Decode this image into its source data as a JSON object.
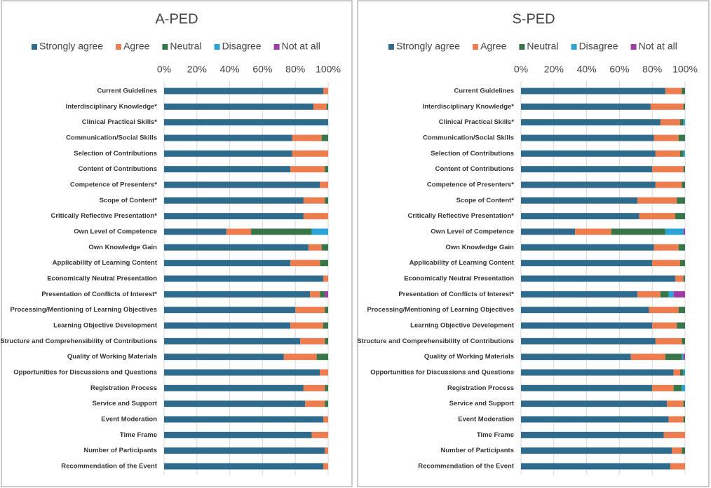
{
  "chart_data": [
    {
      "type": "bar",
      "orientation": "horizontal",
      "stacked": true,
      "title": "A-PED",
      "categories": [
        "Current Guidelines",
        "Interdisciplinary Knowledge*",
        "Clinical Practical Skills*",
        "Communication/Social Skills",
        "Selection of Contributions",
        "Content of Contributions",
        "Competence of Presenters*",
        "Scope of Content*",
        "Critically Reflective Presentation*",
        "Own Level of Competence",
        "Own Knowledge Gain",
        "Applicability of Learning Content",
        "Economically Neutral Presentation",
        "Presentation of Conflicts of Interest*",
        "Processing/Mentioning of Learning Objectives",
        "Learning Objective Development",
        "Structure and Comprehensibility of Contributions",
        "Quality of Working Materials",
        "Opportunities for Discussions and Questions",
        "Registration Process",
        "Service and Support",
        "Event Moderation",
        "Time Frame",
        "Number of Participants",
        "Recommendation of the Event"
      ],
      "series": [
        {
          "name": "Strongly agree",
          "color": "#2f6b8c",
          "values": [
            97,
            91,
            100,
            78,
            78,
            77,
            95,
            85,
            85,
            38,
            88,
            77,
            97,
            89,
            80,
            77,
            83,
            73,
            95,
            85,
            86,
            97,
            90,
            98,
            97
          ]
        },
        {
          "name": "Agree",
          "color": "#ed7d4f",
          "values": [
            3,
            8,
            0,
            18,
            22,
            21,
            5,
            13,
            15,
            15,
            8,
            18,
            3,
            6,
            18,
            20,
            15,
            20,
            5,
            13,
            12,
            3,
            10,
            2,
            3
          ]
        },
        {
          "name": "Neutral",
          "color": "#38764a",
          "values": [
            0,
            1,
            0,
            4,
            0,
            2,
            0,
            2,
            0,
            37,
            4,
            5,
            0,
            3,
            2,
            3,
            2,
            7,
            0,
            2,
            2,
            0,
            0,
            0,
            0
          ]
        },
        {
          "name": "Disagree",
          "color": "#2aa3d5",
          "values": [
            0,
            0,
            0,
            0,
            0,
            0,
            0,
            0,
            0,
            10,
            0,
            0,
            0,
            0,
            0,
            0,
            0,
            0,
            0,
            0,
            0,
            0,
            0,
            0,
            0
          ]
        },
        {
          "name": "Not at all",
          "color": "#a03ca6",
          "values": [
            0,
            0,
            0,
            0,
            0,
            0,
            0,
            0,
            0,
            0,
            0,
            0,
            0,
            2,
            0,
            0,
            0,
            0,
            0,
            0,
            0,
            0,
            0,
            0,
            0
          ]
        }
      ],
      "xlim": [
        0,
        100
      ],
      "xticks": [
        {
          "value": 0,
          "label": "0%"
        },
        {
          "value": 20,
          "label": "20%"
        },
        {
          "value": 40,
          "label": "40%"
        },
        {
          "value": 60,
          "label": "60%"
        },
        {
          "value": 80,
          "label": "80%"
        },
        {
          "value": 100,
          "label": "100%"
        }
      ],
      "grid": true,
      "legend": "top"
    },
    {
      "type": "bar",
      "orientation": "horizontal",
      "stacked": true,
      "title": "S-PED",
      "categories": [
        "Current Guidelines",
        "Interdisciplinary Knowledge*",
        "Clinical Practical Skills*",
        "Communication/Social Skills",
        "Selection of Contributions",
        "Content of Contributions",
        "Competence of Presenters*",
        "Scope of Content*",
        "Critically Reflective Presentation*",
        "Own Level of Competence",
        "Own Knowledge Gain",
        "Applicability of Learning Content",
        "Economically Neutral Presentation",
        "Presentation of Conflicts of Interest*",
        "Processing/Mentioning of Learning Objectives",
        "Learning Objective Development",
        "Structure and Comprehensibility of Contributions",
        "Quality of Working Materials",
        "Opportunities for Discussions and Questions",
        "Registration Process",
        "Service and Support",
        "Event Moderation",
        "Time Frame",
        "Number of Participants",
        "Recommendation of the Event"
      ],
      "series": [
        {
          "name": "Strongly agree",
          "color": "#2f6b8c",
          "values": [
            88,
            79,
            85,
            81,
            82,
            80,
            82,
            71,
            72,
            33,
            81,
            80,
            94,
            71,
            78,
            80,
            82,
            67,
            93,
            80,
            89,
            90,
            87,
            92,
            91
          ]
        },
        {
          "name": "Agree",
          "color": "#ed7d4f",
          "values": [
            10,
            20,
            12,
            15,
            15,
            19,
            16,
            24,
            22,
            22,
            15,
            17,
            5,
            14,
            18,
            15,
            16,
            21,
            4,
            13,
            10,
            9,
            13,
            6,
            9
          ]
        },
        {
          "name": "Neutral",
          "color": "#38764a",
          "values": [
            2,
            1,
            2,
            4,
            2,
            1,
            2,
            5,
            6,
            33,
            4,
            3,
            1,
            5,
            4,
            5,
            2,
            10,
            2,
            5,
            1,
            1,
            0,
            2,
            0
          ]
        },
        {
          "name": "Disagree",
          "color": "#2aa3d5",
          "values": [
            0,
            0,
            1,
            0,
            1,
            0,
            0,
            0,
            0,
            11,
            0,
            0,
            0,
            3,
            0,
            0,
            0,
            1,
            1,
            2,
            0,
            0,
            0,
            0,
            0
          ]
        },
        {
          "name": "Not at all",
          "color": "#a03ca6",
          "values": [
            0,
            0,
            0,
            0,
            0,
            0,
            0,
            0,
            0,
            1,
            0,
            0,
            0,
            7,
            0,
            0,
            0,
            1,
            0,
            0,
            0,
            0,
            0,
            0,
            0
          ]
        }
      ],
      "xlim": [
        0,
        100
      ],
      "xticks": [
        {
          "value": 0,
          "label": "0%"
        },
        {
          "value": 20,
          "label": "20%"
        },
        {
          "value": 40,
          "label": "40%"
        },
        {
          "value": 60,
          "label": "60%"
        },
        {
          "value": 80,
          "label": "80%"
        },
        {
          "value": 100,
          "label": "100%"
        }
      ],
      "grid": true,
      "legend": "top"
    }
  ]
}
